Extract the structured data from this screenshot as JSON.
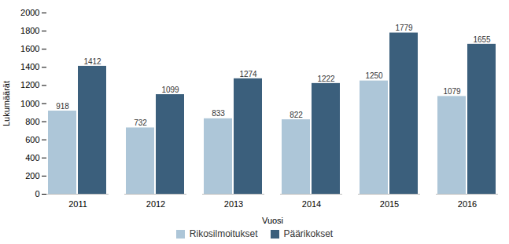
{
  "chart_data": {
    "type": "bar",
    "categories": [
      "2011",
      "2012",
      "2013",
      "2014",
      "2015",
      "2016"
    ],
    "series": [
      {
        "name": "Rikosilmoitukset",
        "color": "#adc6d8",
        "values": [
          918,
          732,
          833,
          822,
          1250,
          1079
        ]
      },
      {
        "name": "Päärikokset",
        "color": "#3b5f7c",
        "values": [
          1412,
          1099,
          1274,
          1222,
          1779,
          1655
        ]
      }
    ],
    "xlabel": "Vuosi",
    "ylabel": "Lukumäärät",
    "ylim": [
      0,
      2000
    ],
    "yticks": [
      0,
      200,
      400,
      600,
      800,
      1000,
      1200,
      1400,
      1600,
      1800,
      2000
    ],
    "grid": false,
    "legend": "bottom",
    "data_labels": true
  }
}
